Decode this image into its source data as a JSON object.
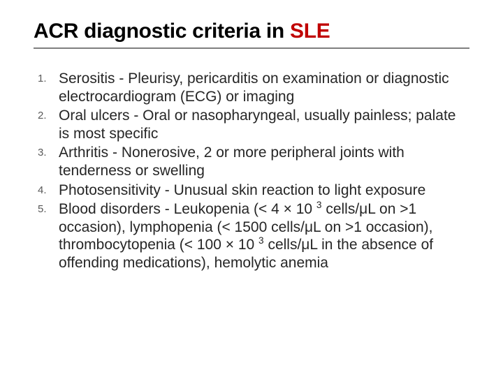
{
  "slide": {
    "title_prefix": "ACR diagnostic criteria in ",
    "title_accent": "SLE",
    "title_fontsize": 30,
    "title_color": "#000000",
    "accent_color": "#c00000",
    "rule_color": "#7f7f7f",
    "body_fontsize": 21,
    "body_color": "#262626",
    "number_fontsize": 15,
    "number_color": "#595959",
    "background_color": "#ffffff",
    "items": [
      {
        "text": "Serositis - Pleurisy, pericarditis on examination or diagnostic electrocardiogram (ECG) or imaging"
      },
      {
        "text": "Oral ulcers - Oral or nasopharyngeal, usually painless; palate is most specific"
      },
      {
        "text": "Arthritis - Nonerosive, 2 or more peripheral joints with tenderness or swelling"
      },
      {
        "text": "Photosensitivity - Unusual skin reaction to light exposure"
      },
      {
        "text_html": "Blood disorders - Leukopenia (< 4 × 10 <span class=\"sup\">3</span> cells/μL on >1 occasion), lymphopenia (< 1500 cells/μL on >1 occasion), thrombocytopenia (< 100 × 10 <span class=\"sup\">3</span> cells/μL in the absence of offending medications), hemolytic anemia"
      }
    ]
  }
}
